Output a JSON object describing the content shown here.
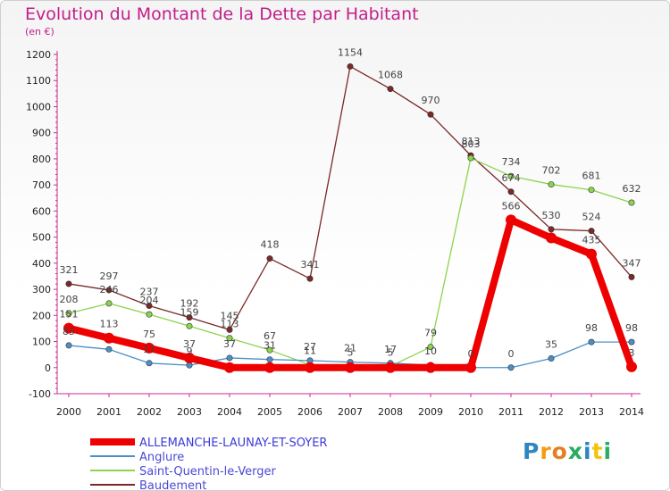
{
  "title": "Evolution du Montant de la Dette par Habitant",
  "subtitle": "(en €)",
  "logo": "Proxiti",
  "chart_data": {
    "type": "line",
    "x": [
      "2000",
      "2001",
      "2002",
      "2003",
      "2004",
      "2005",
      "2006",
      "2007",
      "2008",
      "2009",
      "2010",
      "2011",
      "2012",
      "2013",
      "2014"
    ],
    "ylim": [
      -100,
      1200
    ],
    "yticks": [
      "-100",
      "0",
      "100",
      "200",
      "300",
      "400",
      "500",
      "600",
      "700",
      "800",
      "900",
      "1000",
      "1100",
      "1200"
    ],
    "grid": false,
    "legend_position": "bottom-left",
    "series": [
      {
        "name": "ALLEMANCHE-LAUNAY-ET-SOYER",
        "color": "#ee0000",
        "values": [
          151,
          113,
          75,
          37,
          0,
          0,
          0,
          0,
          0,
          0,
          0,
          566,
          497,
          435,
          3
        ],
        "labels": [
          "151",
          "113",
          "75",
          "37",
          "",
          "",
          "",
          "",
          "",
          "",
          "",
          "566",
          "",
          "435",
          "3"
        ]
      },
      {
        "name": "Anglure",
        "color": "#4a90c8",
        "values": [
          85,
          70,
          17,
          9,
          37,
          31,
          27,
          21,
          17,
          10,
          0,
          0,
          35,
          98,
          98
        ],
        "labels": [
          "85",
          "",
          "17",
          "9",
          "37",
          "31",
          "27",
          "21",
          "17",
          "10",
          "0",
          "0",
          "35",
          "98",
          "98"
        ]
      },
      {
        "name": "Saint-Quentin-le-Verger",
        "color": "#8cd34e",
        "values": [
          208,
          246,
          204,
          159,
          113,
          67,
          11,
          5,
          5,
          79,
          803,
          734,
          702,
          681,
          632
        ],
        "labels": [
          "208",
          "246",
          "204",
          "159",
          "113",
          "67",
          "11",
          "5",
          "5",
          "79",
          "803",
          "734",
          "702",
          "681",
          "632"
        ]
      },
      {
        "name": "Baudement",
        "color": "#7a2828",
        "values": [
          321,
          297,
          237,
          192,
          145,
          418,
          341,
          1154,
          1068,
          970,
          813,
          674,
          530,
          524,
          347
        ],
        "labels": [
          "321",
          "297",
          "237",
          "192",
          "145",
          "418",
          "341",
          "1154",
          "1068",
          "970",
          "813",
          "674",
          "530",
          "524",
          "347"
        ]
      }
    ]
  }
}
